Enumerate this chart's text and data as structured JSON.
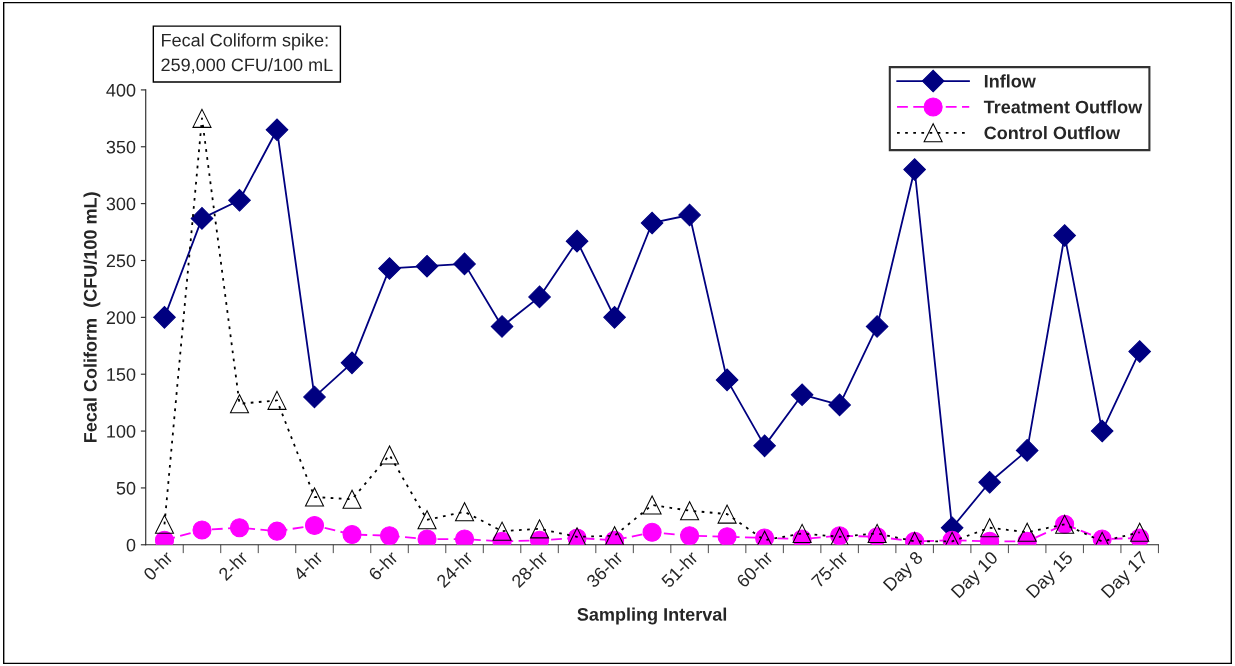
{
  "chart_data": {
    "type": "line",
    "xlabel": "Sampling Interval",
    "ylabel": "Fecal Coliform  (CFU/100 mL)",
    "categories": [
      "0-hr",
      null,
      "2-hr",
      null,
      "4-hr",
      null,
      "6-hr",
      null,
      "24-hr",
      null,
      "28-hr",
      null,
      "36-hr",
      null,
      "51-hr",
      null,
      "60-hr",
      null,
      "75-hr",
      null,
      "Day 8",
      null,
      "Day 10",
      null,
      "Day 15",
      null,
      "Day 17"
    ],
    "series": [
      {
        "name": "Inflow",
        "color": "#000080",
        "marker": "diamond",
        "line_style": "solid",
        "values": [
          200,
          287,
          303,
          365,
          130,
          160,
          243,
          245,
          247,
          192,
          218,
          267,
          200,
          283,
          290,
          145,
          87,
          132,
          123,
          192,
          330,
          15,
          55,
          83,
          272,
          100,
          170
        ]
      },
      {
        "name": "Treatment Outflow",
        "color": "#ff00ff",
        "marker": "circle",
        "line_style": "dashed",
        "values": [
          4,
          13,
          15,
          12,
          17,
          9,
          8,
          5,
          5,
          3,
          4,
          6,
          4,
          11,
          8,
          7,
          6,
          5,
          8,
          7,
          3,
          4,
          3,
          3,
          18,
          5,
          6
        ]
      },
      {
        "name": "Control Outflow",
        "color": "#000000",
        "marker": "triangle",
        "line_style": "dotted",
        "values": [
          18,
          375,
          124,
          127,
          42,
          40,
          79,
          22,
          29,
          12,
          14,
          7,
          8,
          35,
          30,
          27,
          4,
          10,
          7,
          10,
          3,
          3,
          15,
          11,
          18,
          3,
          11
        ]
      }
    ],
    "ylim": [
      0,
      400
    ],
    "yticks": [
      0,
      50,
      100,
      150,
      200,
      250,
      300,
      350,
      400
    ],
    "grid": false,
    "legend": "top right",
    "annotations": [
      "Fecal Coliform spike:\n259,000 CFU/100 mL"
    ]
  }
}
